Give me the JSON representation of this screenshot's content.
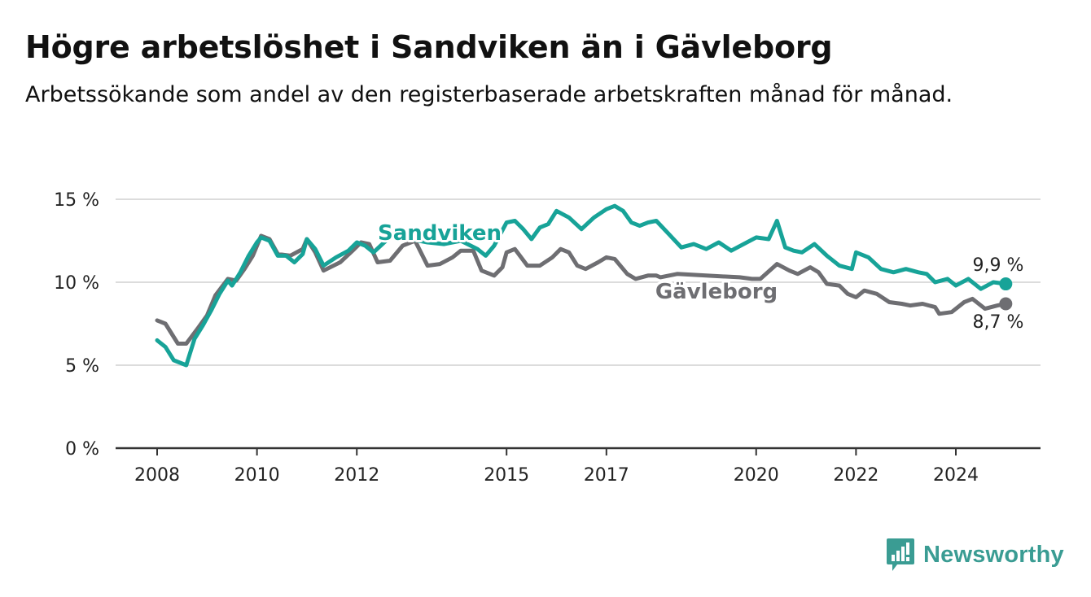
{
  "title": "Högre arbetslöshet i Sandviken än i Gävleborg",
  "subtitle": "Arbetssökande som andel av den registerbaserade arbetskraften månad för månad.",
  "brand": "Newsworthy",
  "colors": {
    "sandviken": "#17a398",
    "gavleborg": "#6e6e72",
    "grid": "#dcdcdc",
    "axis": "#333333",
    "brand": "#3a9c93"
  },
  "chart_data": {
    "type": "line",
    "title": "Högre arbetslöshet i Sandviken än i Gävleborg",
    "subtitle": "Arbetssökande som andel av den registerbaserade arbetskraften månad för månad.",
    "xlabel": "",
    "ylabel": "",
    "ylim": [
      0,
      15
    ],
    "xlim": [
      "2008-01",
      "2025-12"
    ],
    "y_ticks": [
      0,
      5,
      10,
      15
    ],
    "y_tick_labels": [
      "0 %",
      "5 %",
      "10 %",
      "15 %"
    ],
    "x_ticks": [
      "2008-01",
      "2010-01",
      "2012-01",
      "2015-01",
      "2017-01",
      "2020-01",
      "2022-01",
      "2024-01"
    ],
    "x_tick_labels": [
      "2008",
      "2010",
      "2012",
      "2015",
      "2017",
      "2020",
      "2022",
      "2024"
    ],
    "grid": true,
    "series": [
      {
        "name": "Sandviken",
        "end_label": "9,9 %",
        "points": [
          [
            "2008-01",
            6.5
          ],
          [
            "2008-03",
            6.1
          ],
          [
            "2008-05",
            5.3
          ],
          [
            "2008-07",
            5.1
          ],
          [
            "2008-08",
            5.0
          ],
          [
            "2008-10",
            6.6
          ],
          [
            "2008-12",
            7.4
          ],
          [
            "2009-02",
            8.3
          ],
          [
            "2009-04",
            9.3
          ],
          [
            "2009-06",
            10.1
          ],
          [
            "2009-07",
            9.8
          ],
          [
            "2009-09",
            10.6
          ],
          [
            "2009-11",
            11.6
          ],
          [
            "2010-01",
            12.4
          ],
          [
            "2010-02",
            12.7
          ],
          [
            "2010-04",
            12.5
          ],
          [
            "2010-06",
            11.6
          ],
          [
            "2010-08",
            11.6
          ],
          [
            "2010-10",
            11.2
          ],
          [
            "2010-12",
            11.7
          ],
          [
            "2011-01",
            12.6
          ],
          [
            "2011-03",
            12.0
          ],
          [
            "2011-05",
            11.0
          ],
          [
            "2011-08",
            11.5
          ],
          [
            "2011-11",
            11.9
          ],
          [
            "2012-01",
            12.4
          ],
          [
            "2012-03",
            12.2
          ],
          [
            "2012-05",
            11.8
          ],
          [
            "2012-08",
            12.5
          ],
          [
            "2012-11",
            13.0
          ],
          [
            "2013-02",
            12.6
          ],
          [
            "2013-06",
            12.4
          ],
          [
            "2013-10",
            12.3
          ],
          [
            "2014-02",
            12.5
          ],
          [
            "2014-06",
            12.0
          ],
          [
            "2014-08",
            11.6
          ],
          [
            "2014-10",
            12.2
          ],
          [
            "2015-01",
            13.6
          ],
          [
            "2015-03",
            13.7
          ],
          [
            "2015-05",
            13.2
          ],
          [
            "2015-07",
            12.6
          ],
          [
            "2015-09",
            13.3
          ],
          [
            "2015-11",
            13.5
          ],
          [
            "2016-01",
            14.3
          ],
          [
            "2016-04",
            13.9
          ],
          [
            "2016-07",
            13.2
          ],
          [
            "2016-10",
            13.9
          ],
          [
            "2017-01",
            14.4
          ],
          [
            "2017-03",
            14.6
          ],
          [
            "2017-05",
            14.3
          ],
          [
            "2017-07",
            13.6
          ],
          [
            "2017-09",
            13.4
          ],
          [
            "2017-11",
            13.6
          ],
          [
            "2018-01",
            13.7
          ],
          [
            "2018-04",
            12.9
          ],
          [
            "2018-07",
            12.1
          ],
          [
            "2018-10",
            12.3
          ],
          [
            "2019-01",
            12.0
          ],
          [
            "2019-04",
            12.4
          ],
          [
            "2019-07",
            11.9
          ],
          [
            "2019-10",
            12.3
          ],
          [
            "2020-01",
            12.7
          ],
          [
            "2020-04",
            12.6
          ],
          [
            "2020-06",
            13.7
          ],
          [
            "2020-08",
            12.1
          ],
          [
            "2020-10",
            11.9
          ],
          [
            "2020-12",
            11.8
          ],
          [
            "2021-03",
            12.3
          ],
          [
            "2021-06",
            11.6
          ],
          [
            "2021-09",
            11.0
          ],
          [
            "2021-12",
            10.8
          ],
          [
            "2022-01",
            11.8
          ],
          [
            "2022-04",
            11.5
          ],
          [
            "2022-07",
            10.8
          ],
          [
            "2022-10",
            10.6
          ],
          [
            "2023-01",
            10.8
          ],
          [
            "2023-04",
            10.6
          ],
          [
            "2023-06",
            10.5
          ],
          [
            "2023-08",
            10.0
          ],
          [
            "2023-11",
            10.2
          ],
          [
            "2024-01",
            9.8
          ],
          [
            "2024-04",
            10.2
          ],
          [
            "2024-07",
            9.6
          ],
          [
            "2024-10",
            10.0
          ],
          [
            "2025-01",
            9.9
          ]
        ]
      },
      {
        "name": "Gävleborg",
        "end_label": "8,7 %",
        "points": [
          [
            "2008-01",
            7.7
          ],
          [
            "2008-03",
            7.5
          ],
          [
            "2008-06",
            6.3
          ],
          [
            "2008-08",
            6.3
          ],
          [
            "2008-11",
            7.3
          ],
          [
            "2009-01",
            8.0
          ],
          [
            "2009-03",
            9.2
          ],
          [
            "2009-06",
            10.2
          ],
          [
            "2009-08",
            10.1
          ],
          [
            "2009-10",
            10.8
          ],
          [
            "2009-12",
            11.6
          ],
          [
            "2010-02",
            12.8
          ],
          [
            "2010-04",
            12.6
          ],
          [
            "2010-06",
            11.7
          ],
          [
            "2010-09",
            11.6
          ],
          [
            "2010-12",
            12.0
          ],
          [
            "2011-01",
            12.6
          ],
          [
            "2011-03",
            11.8
          ],
          [
            "2011-05",
            10.7
          ],
          [
            "2011-09",
            11.2
          ],
          [
            "2011-12",
            11.9
          ],
          [
            "2012-02",
            12.4
          ],
          [
            "2012-04",
            12.3
          ],
          [
            "2012-06",
            11.2
          ],
          [
            "2012-09",
            11.3
          ],
          [
            "2012-12",
            12.2
          ],
          [
            "2013-03",
            12.5
          ],
          [
            "2013-06",
            11.0
          ],
          [
            "2013-09",
            11.1
          ],
          [
            "2013-12",
            11.5
          ],
          [
            "2014-02",
            11.9
          ],
          [
            "2014-05",
            11.9
          ],
          [
            "2014-07",
            10.7
          ],
          [
            "2014-10",
            10.4
          ],
          [
            "2014-12",
            10.9
          ],
          [
            "2015-01",
            11.8
          ],
          [
            "2015-03",
            12.0
          ],
          [
            "2015-06",
            11.0
          ],
          [
            "2015-09",
            11.0
          ],
          [
            "2015-12",
            11.5
          ],
          [
            "2016-02",
            12.0
          ],
          [
            "2016-04",
            11.8
          ],
          [
            "2016-06",
            11.0
          ],
          [
            "2016-08",
            10.8
          ],
          [
            "2016-11",
            11.2
          ],
          [
            "2017-01",
            11.5
          ],
          [
            "2017-03",
            11.4
          ],
          [
            "2017-06",
            10.5
          ],
          [
            "2017-08",
            10.2
          ],
          [
            "2017-11",
            10.4
          ],
          [
            "2018-01",
            10.4
          ],
          [
            "2018-02",
            10.3
          ],
          [
            "2018-06",
            10.5
          ],
          [
            "2019-01",
            10.4
          ],
          [
            "2019-09",
            10.3
          ],
          [
            "2019-12",
            10.2
          ],
          [
            "2020-02",
            10.2
          ],
          [
            "2020-06",
            11.1
          ],
          [
            "2020-09",
            10.7
          ],
          [
            "2020-11",
            10.5
          ],
          [
            "2021-02",
            10.9
          ],
          [
            "2021-04",
            10.6
          ],
          [
            "2021-06",
            9.9
          ],
          [
            "2021-09",
            9.8
          ],
          [
            "2021-11",
            9.3
          ],
          [
            "2022-01",
            9.1
          ],
          [
            "2022-03",
            9.5
          ],
          [
            "2022-06",
            9.3
          ],
          [
            "2022-09",
            8.8
          ],
          [
            "2022-12",
            8.7
          ],
          [
            "2023-02",
            8.6
          ],
          [
            "2023-05",
            8.7
          ],
          [
            "2023-08",
            8.5
          ],
          [
            "2023-09",
            8.1
          ],
          [
            "2023-12",
            8.2
          ],
          [
            "2024-03",
            8.8
          ],
          [
            "2024-05",
            9.0
          ],
          [
            "2024-08",
            8.4
          ],
          [
            "2024-11",
            8.6
          ],
          [
            "2025-01",
            8.7
          ]
        ]
      }
    ]
  }
}
